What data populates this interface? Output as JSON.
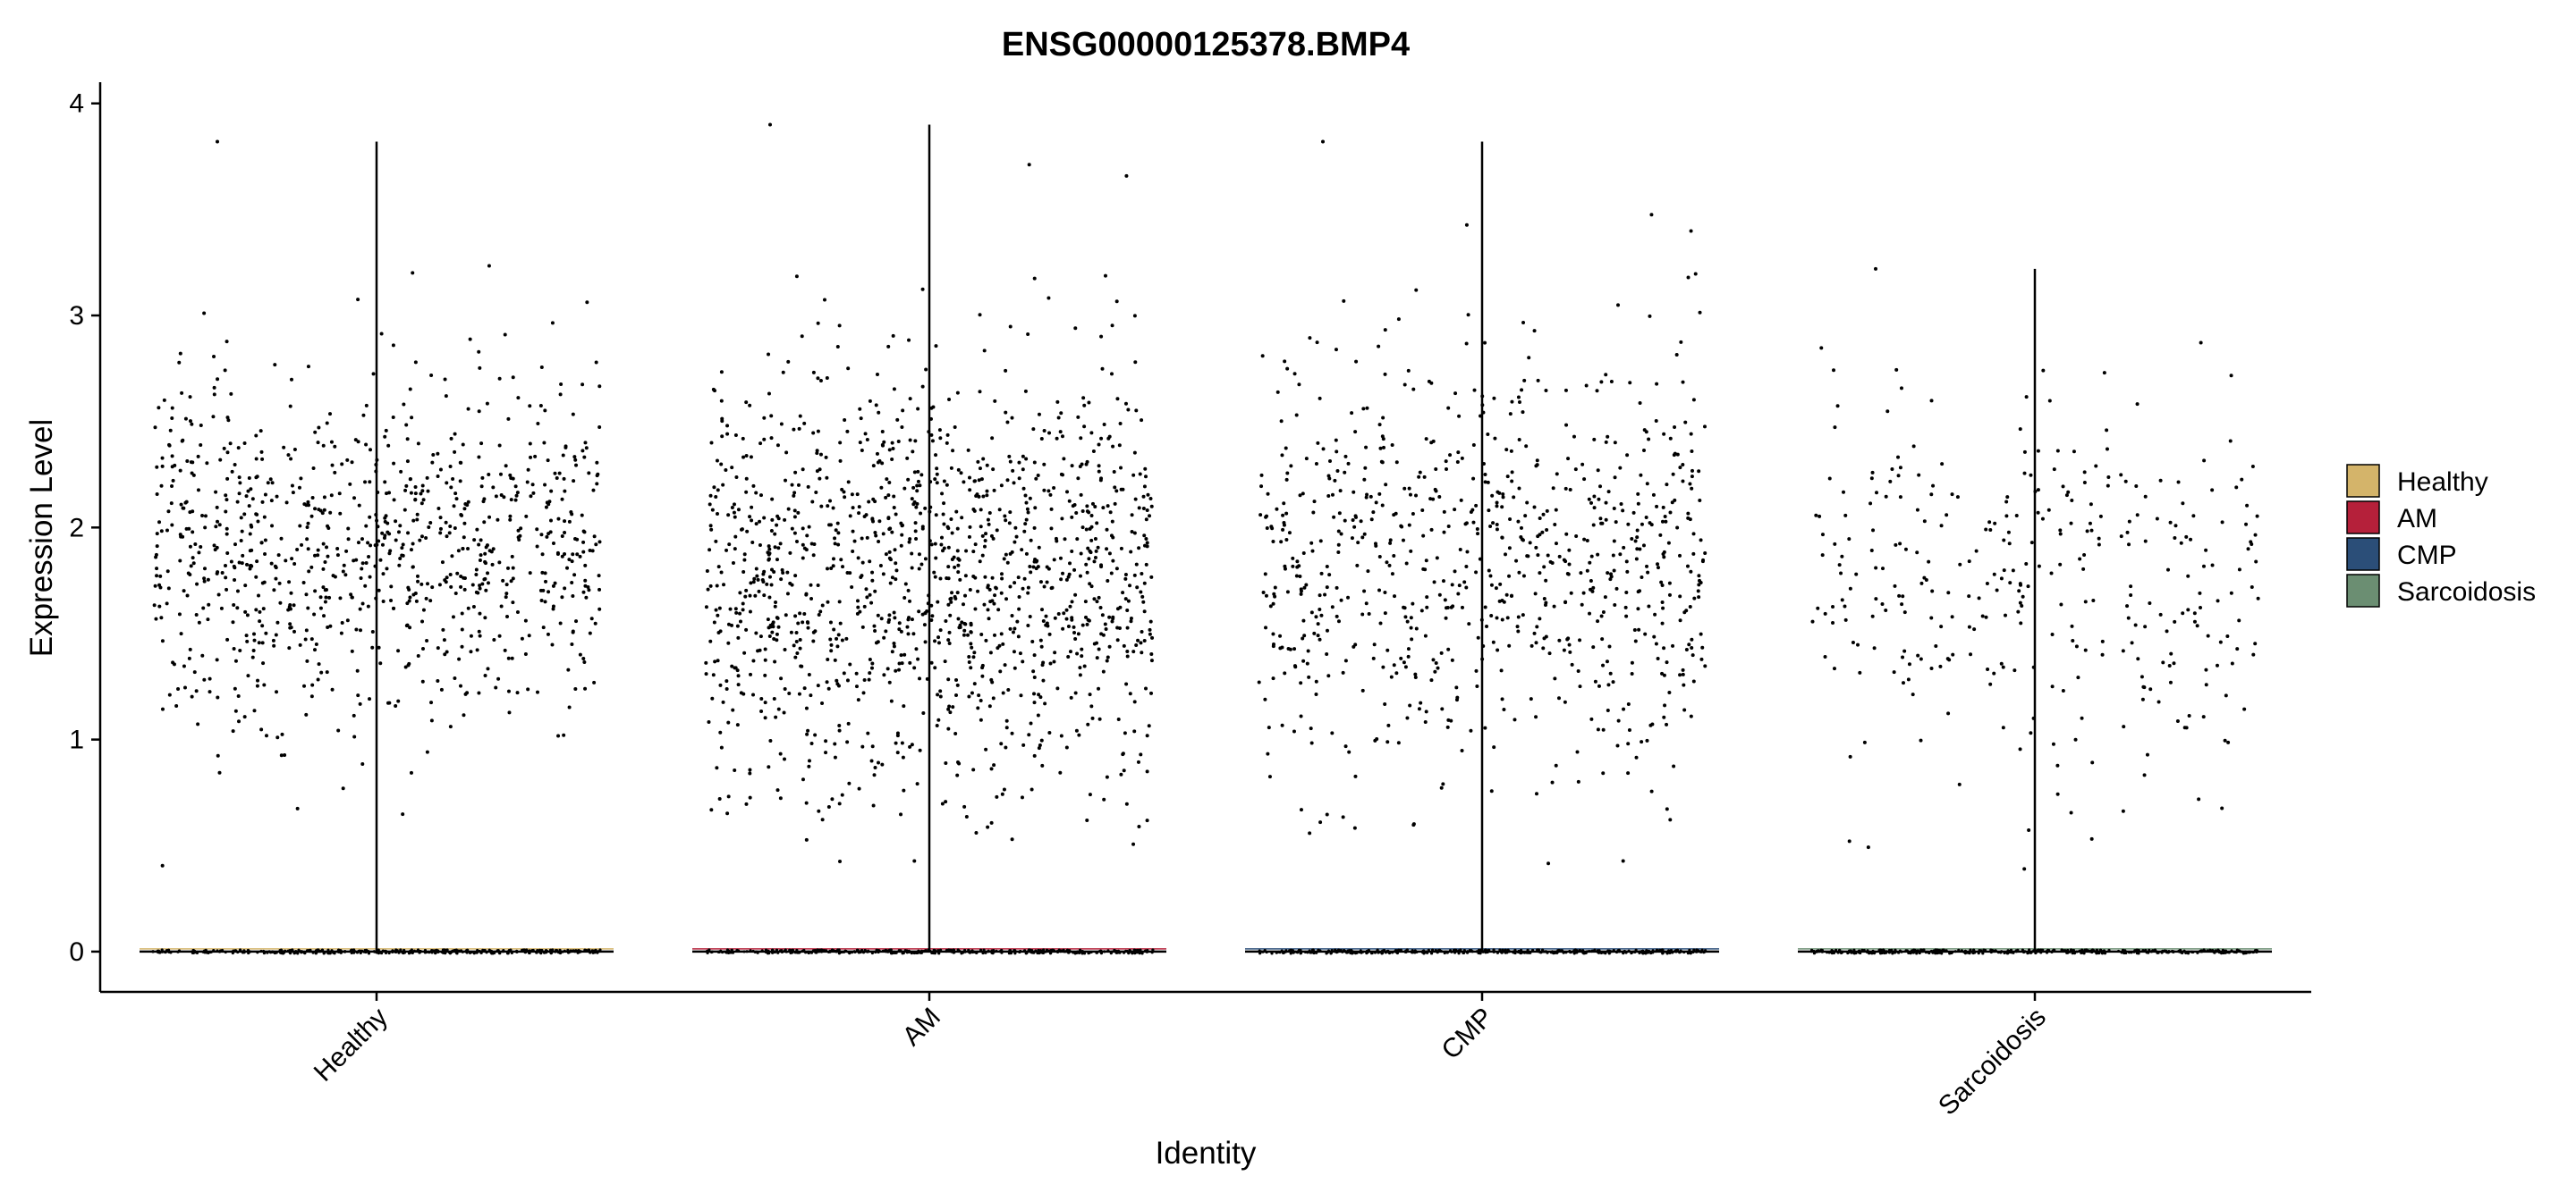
{
  "chart_data": {
    "type": "scatter",
    "subtype": "violin-jitter",
    "title": "ENSG00000125378.BMP4",
    "xlabel": "Identity",
    "ylabel": "Expression Level",
    "ylim": [
      -0.19,
      4.1
    ],
    "yticks": [
      0,
      1,
      2,
      3,
      4
    ],
    "grid": false,
    "legend_position": "right",
    "categories": [
      "Healthy",
      "AM",
      "CMP",
      "Sarcoidosis"
    ],
    "series": [
      {
        "category": "Healthy",
        "color": "#D4B46A",
        "max": 3.82,
        "nonzero_points": 920,
        "nonzero_center": 1.9,
        "nonzero_spread": 0.42,
        "zero_baseline": 0
      },
      {
        "category": "AM",
        "color": "#B5203A",
        "max": 3.9,
        "nonzero_points": 1300,
        "nonzero_center": 1.75,
        "nonzero_spread": 0.5,
        "zero_baseline": 0
      },
      {
        "category": "CMP",
        "color": "#2B4E78",
        "max": 3.82,
        "nonzero_points": 800,
        "nonzero_center": 1.85,
        "nonzero_spread": 0.5,
        "zero_baseline": 0
      },
      {
        "category": "Sarcoidosis",
        "color": "#6B8E72",
        "max": 3.22,
        "nonzero_points": 330,
        "nonzero_center": 1.7,
        "nonzero_spread": 0.45,
        "zero_baseline": 0
      }
    ],
    "legend": [
      {
        "label": "Healthy",
        "color": "#D4B46A"
      },
      {
        "label": "AM",
        "color": "#B5203A"
      },
      {
        "label": "CMP",
        "color": "#2B4E78"
      },
      {
        "label": "Sarcoidosis",
        "color": "#6B8E72"
      }
    ]
  }
}
